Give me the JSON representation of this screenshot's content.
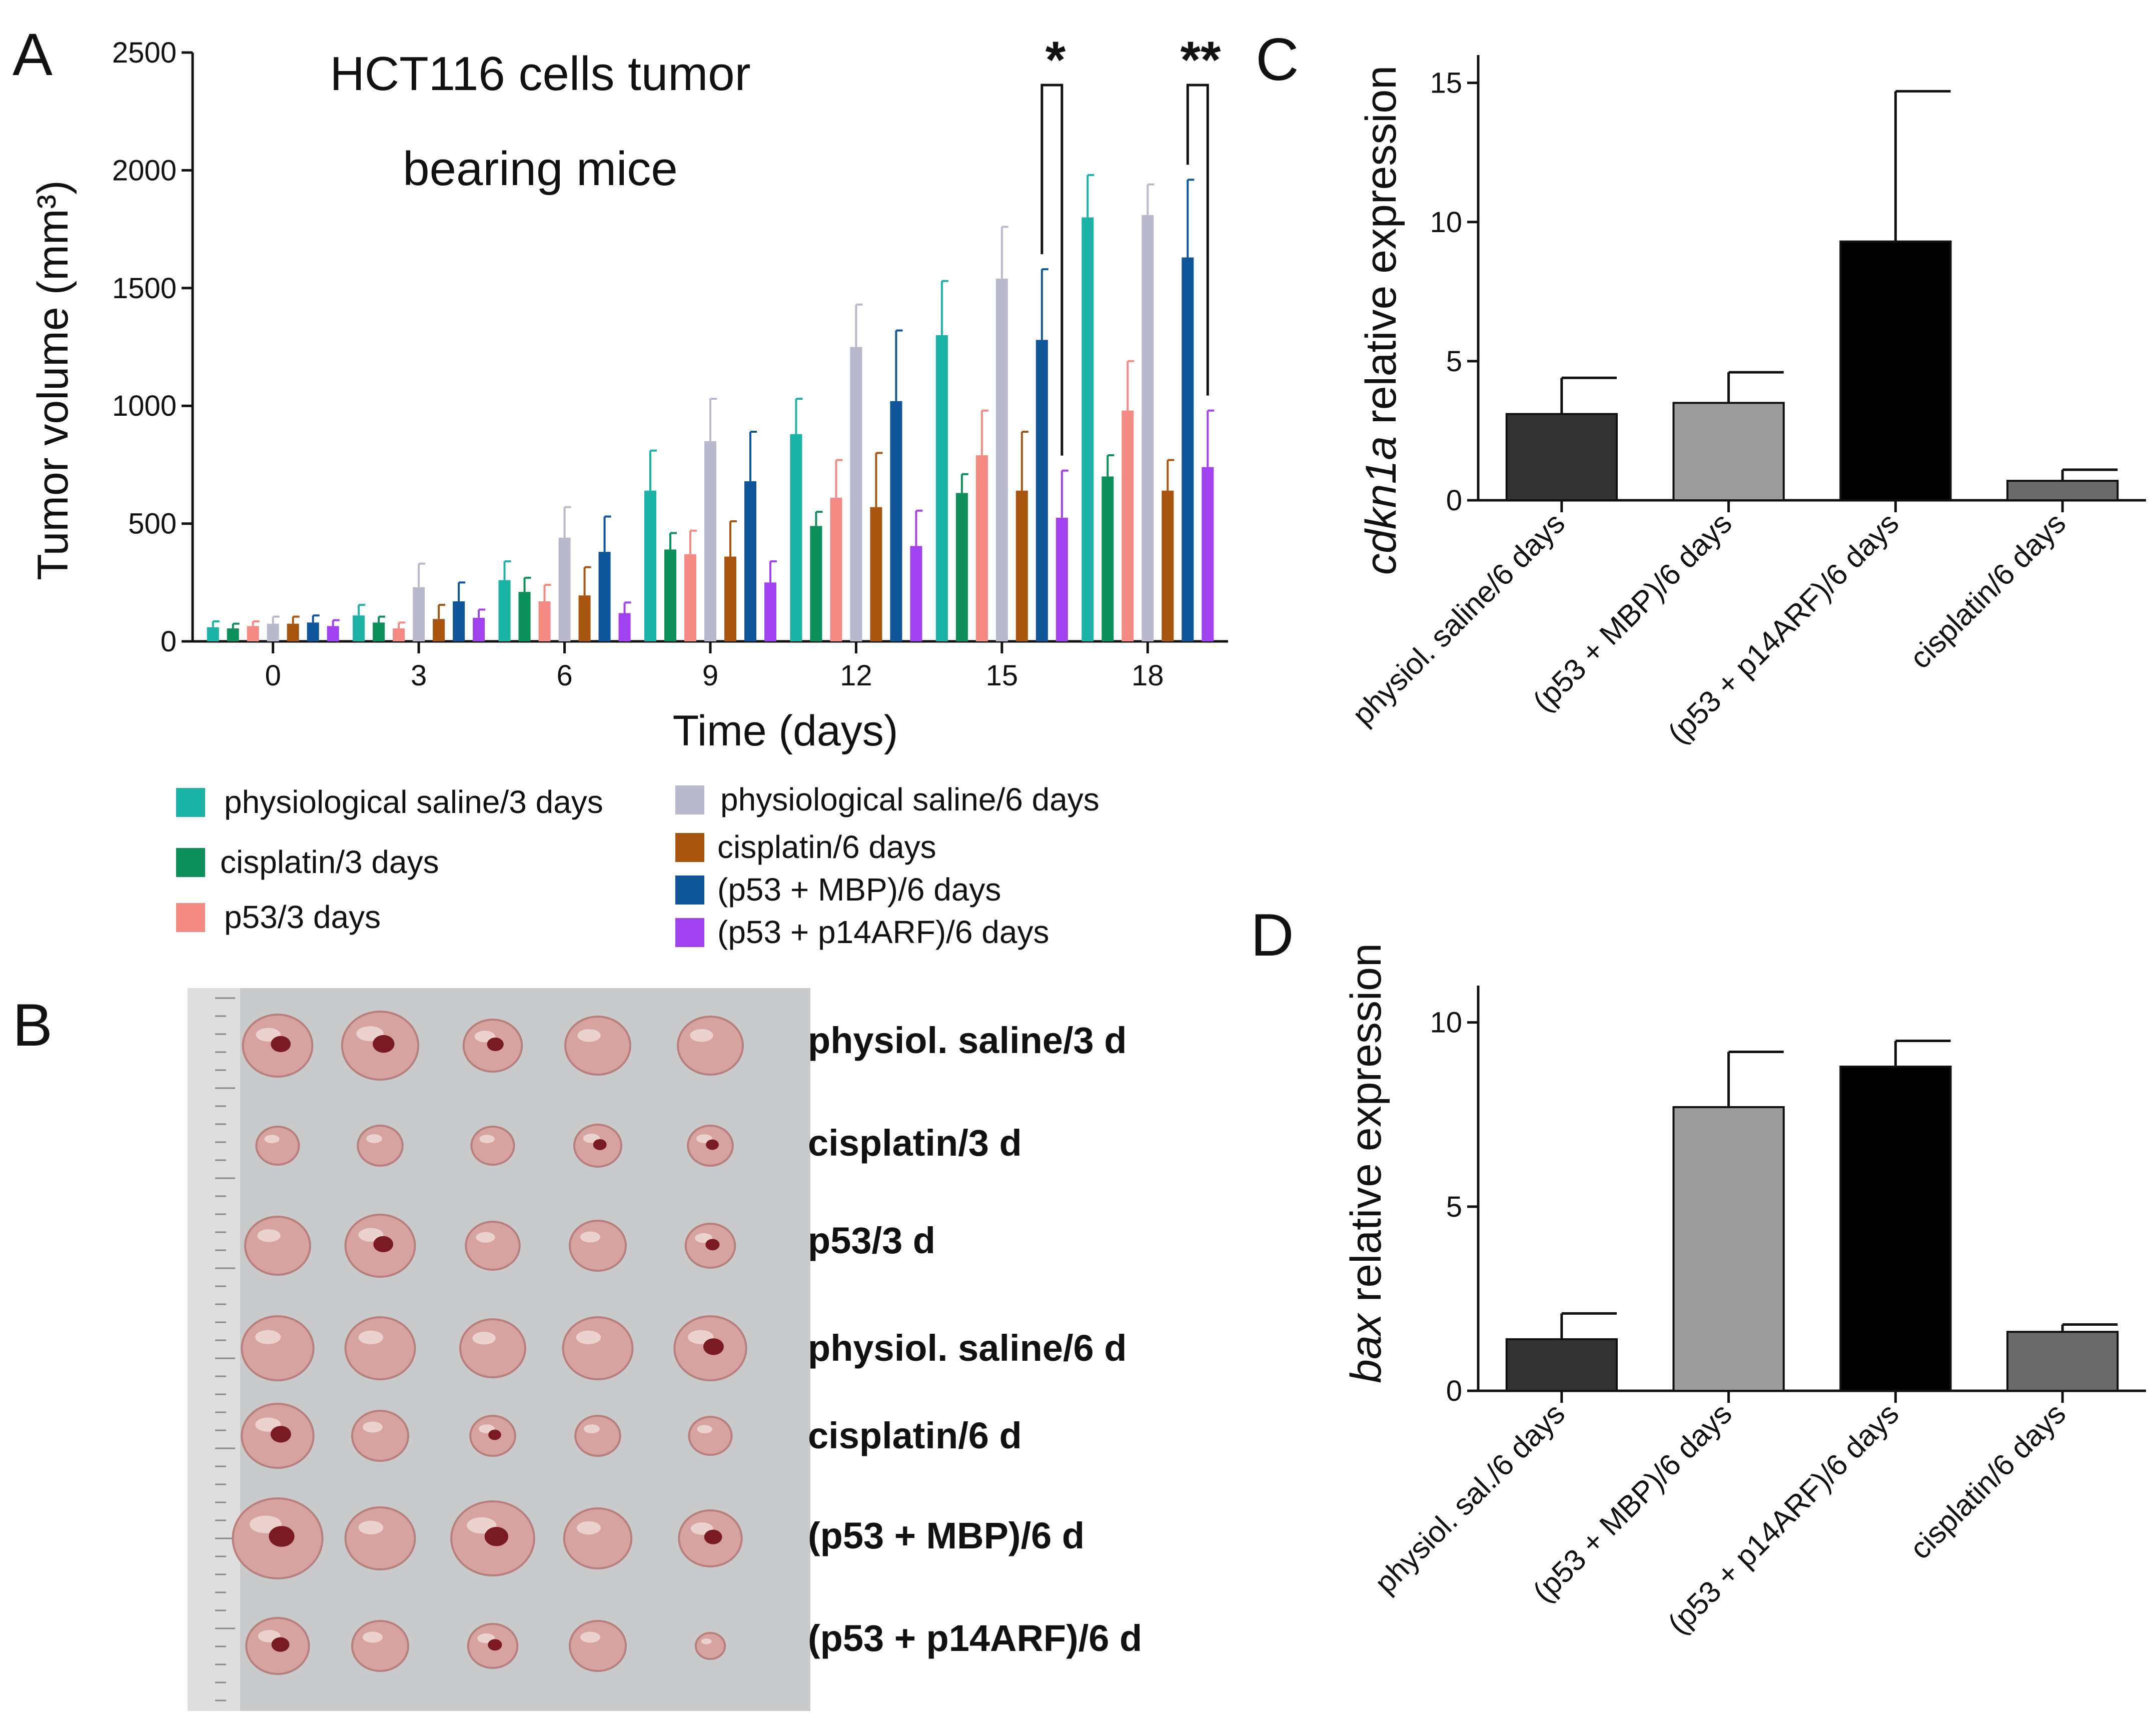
{
  "panels": {
    "A": {
      "label": "A",
      "title_lines": [
        "HCT116 cells tumor",
        "bearing mice"
      ],
      "significance": [
        "*",
        "**"
      ],
      "legend": [
        "physiological saline/3 days",
        "cisplatin/3 days",
        "p53/3 days",
        "physiological saline/6 days",
        "cisplatin/6 days",
        "(p53 + MBP)/6 days",
        "(p53 + p14ARF)/6 days"
      ]
    },
    "B": {
      "label": "B",
      "rows": [
        "physiol. saline/3 d",
        "cisplatin/3 d",
        "p53/3 d",
        "physiol. saline/6 d",
        "cisplatin/6 d",
        "(p53 + MBP)/6 d",
        "(p53 + p14ARF)/6 d"
      ]
    },
    "C": {
      "label": "C",
      "ylabel_gene": "cdkn1a",
      "ylabel_rest": " relative expression"
    },
    "D": {
      "label": "D",
      "ylabel_gene": "bax",
      "ylabel_rest": " relative expression"
    }
  },
  "colors": {
    "saline3": "#1ab3a6",
    "cisplatin3": "#0c8f5a",
    "p53_3": "#f58a84",
    "saline6": "#b8b9cc",
    "cisplatin6": "#a8550f",
    "mbp6": "#0e5699",
    "p14arf6": "#a142f0",
    "tumor_bg": "#c9cacb"
  },
  "chart_data": [
    {
      "type": "bar",
      "panel": "A",
      "xlabel": "Time (days)",
      "ylabel": "Tumor volume (mm³)",
      "ylim": [
        0,
        2500
      ],
      "yticks": [
        0,
        500,
        1000,
        1500,
        2000,
        2500
      ],
      "categories": [
        "0",
        "3",
        "6",
        "9",
        "12",
        "15",
        "18"
      ],
      "series": [
        {
          "name": "physiological saline/3 days",
          "color": "#1ab3a6",
          "values": [
            60,
            110,
            260,
            640,
            880,
            1300,
            1800
          ],
          "errors": [
            25,
            45,
            80,
            170,
            150,
            230,
            180
          ]
        },
        {
          "name": "cisplatin/3 days",
          "color": "#0c8f5a",
          "values": [
            55,
            80,
            210,
            390,
            490,
            630,
            700
          ],
          "errors": [
            20,
            25,
            60,
            70,
            60,
            80,
            90
          ]
        },
        {
          "name": "p53/3 days",
          "color": "#f58a84",
          "values": [
            65,
            55,
            170,
            370,
            610,
            790,
            980
          ],
          "errors": [
            20,
            25,
            70,
            100,
            160,
            190,
            210
          ]
        },
        {
          "name": "physiological saline/6 days",
          "color": "#b8b9cc",
          "values": [
            75,
            230,
            440,
            850,
            1250,
            1540,
            1810
          ],
          "errors": [
            30,
            100,
            130,
            180,
            180,
            220,
            130
          ]
        },
        {
          "name": "cisplatin/6 days",
          "color": "#a8550f",
          "values": [
            75,
            95,
            195,
            360,
            570,
            640,
            640
          ],
          "errors": [
            30,
            60,
            120,
            150,
            230,
            250,
            130
          ]
        },
        {
          "name": "(p53 + MBP)/6 days",
          "color": "#0e5699",
          "values": [
            80,
            170,
            380,
            680,
            1020,
            1280,
            1630
          ],
          "errors": [
            30,
            80,
            150,
            210,
            300,
            300,
            330
          ]
        },
        {
          "name": "(p53 + p14ARF)/6 days",
          "color": "#a142f0",
          "values": [
            65,
            100,
            120,
            250,
            405,
            525,
            740
          ],
          "errors": [
            25,
            35,
            45,
            90,
            150,
            200,
            240
          ]
        }
      ]
    },
    {
      "type": "bar",
      "panel": "C",
      "ylabel": "cdkn1a relative expression",
      "ylim": [
        0,
        16
      ],
      "yticks": [
        0,
        5,
        10,
        15
      ],
      "categories": [
        "physiol. saline/6 days",
        "(p53 + MBP)/6 days",
        "(p53 + p14ARF)/6 days",
        "cisplatin/6 days"
      ],
      "values": [
        3.1,
        3.5,
        9.3,
        0.7
      ],
      "errors": [
        1.3,
        1.1,
        5.4,
        0.4
      ],
      "colors": [
        "#333333",
        "#9c9c9c",
        "#000000",
        "#6a6a6a"
      ]
    },
    {
      "type": "bar",
      "panel": "D",
      "ylabel": "bax relative expression",
      "ylim": [
        0,
        11
      ],
      "yticks": [
        0,
        5,
        10
      ],
      "categories": [
        "physiol. sal./6 days",
        "(p53 + MBP)/6 days",
        "(p53 + p14ARF)/6 days",
        "cisplatin/6 days"
      ],
      "values": [
        1.4,
        7.7,
        8.8,
        1.6
      ],
      "errors": [
        0.7,
        1.5,
        0.7,
        0.2
      ],
      "colors": [
        "#333333",
        "#9c9c9c",
        "#000000",
        "#6a6a6a"
      ]
    }
  ]
}
